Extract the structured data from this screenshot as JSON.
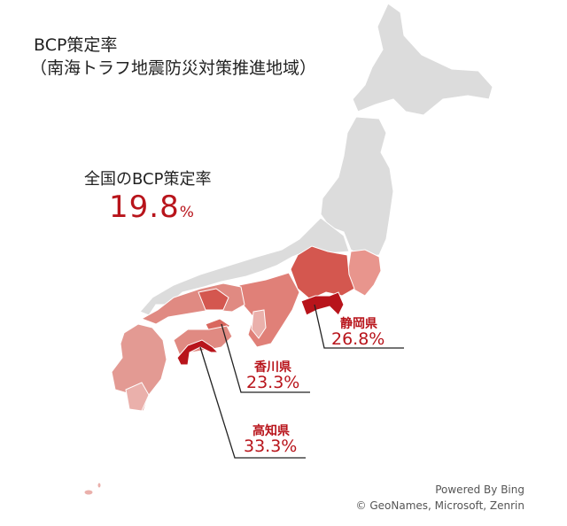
{
  "title": {
    "line1": "BCP策定率",
    "line2": "（南海トラフ地震防災対策推進地域）"
  },
  "national": {
    "label": "全国のBCP策定率",
    "value": "19.8",
    "unit": "%"
  },
  "callouts": [
    {
      "prefecture": "静岡県",
      "rate": "26.8%"
    },
    {
      "prefecture": "香川県",
      "rate": "23.3%"
    },
    {
      "prefecture": "高知県",
      "rate": "33.3%"
    }
  ],
  "attribution": {
    "powered": "Powered By Bing",
    "copyright": "© GeoNames, Microsoft, Zenrin"
  },
  "colors": {
    "outside_region": "#dcdcdc",
    "low": "#eab0ab",
    "mid": "#d9675f",
    "high": "#b8141b",
    "accent_text": "#b8141b"
  }
}
